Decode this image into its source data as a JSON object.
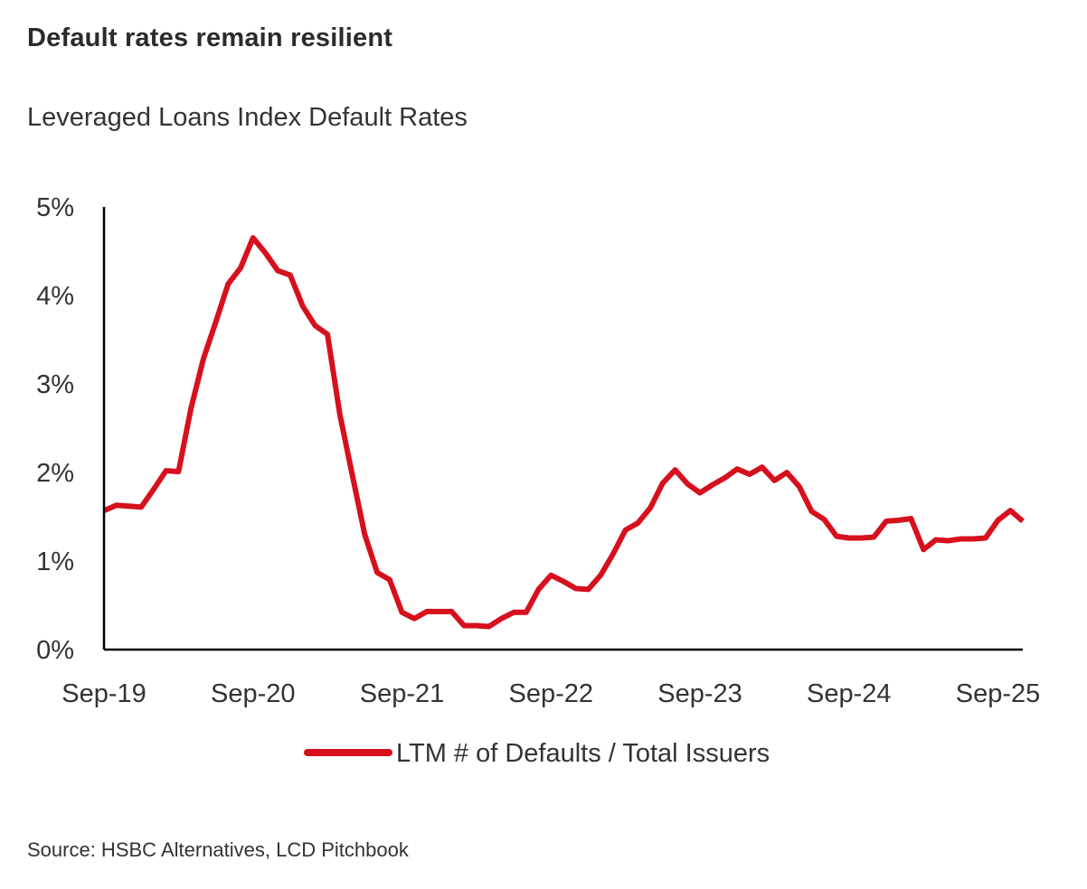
{
  "header": {
    "title": "Default rates remain resilient",
    "subtitle": "Leveraged Loans Index Default Rates"
  },
  "footer": {
    "source": "Source: HSBC Alternatives, LCD Pitchbook"
  },
  "colors": {
    "series": "#d7101d",
    "axis": "#000000",
    "text": "#333333"
  },
  "chart_data": {
    "type": "line",
    "title": "Leveraged Loans Index Default Rates",
    "xlabel": "",
    "ylabel": "",
    "ylim": [
      0,
      5
    ],
    "y_ticks": [
      0,
      1,
      2,
      3,
      4,
      5
    ],
    "y_tick_labels": [
      "0%",
      "1%",
      "2%",
      "3%",
      "4%",
      "5%"
    ],
    "x_tick_labels": [
      "Sep-19",
      "Sep-20",
      "Sep-21",
      "Sep-22",
      "Sep-23",
      "Sep-24",
      "Sep-25"
    ],
    "x_tick_months": [
      0,
      12,
      24,
      36,
      48,
      60,
      72
    ],
    "x_range_months": [
      0,
      74
    ],
    "grid": false,
    "legend_position": "bottom-center",
    "series": [
      {
        "name": "LTM # of Defaults / Total Issuers",
        "x": [
          0,
          1,
          2,
          3,
          4,
          5,
          6,
          7,
          8,
          9,
          10,
          11,
          12,
          13,
          14,
          15,
          16,
          17,
          18,
          19,
          20,
          21,
          22,
          23,
          24,
          25,
          26,
          27,
          28,
          29,
          30,
          31,
          32,
          33,
          34,
          35,
          36,
          37,
          38,
          39,
          40,
          41,
          42,
          43,
          44,
          45,
          46,
          47,
          48,
          49,
          50,
          51,
          52,
          53,
          54,
          55,
          56,
          57,
          58,
          59,
          60,
          61,
          62,
          63,
          64,
          65,
          66,
          67,
          68,
          69,
          70,
          71,
          72,
          73,
          74
        ],
        "values": [
          1.57,
          1.63,
          1.62,
          1.61,
          1.81,
          2.02,
          2.01,
          2.72,
          3.28,
          3.7,
          4.13,
          4.31,
          4.65,
          4.48,
          4.28,
          4.23,
          3.88,
          3.66,
          3.56,
          2.65,
          1.97,
          1.3,
          0.87,
          0.79,
          0.42,
          0.35,
          0.43,
          0.43,
          0.43,
          0.27,
          0.27,
          0.26,
          0.35,
          0.42,
          0.42,
          0.68,
          0.84,
          0.77,
          0.69,
          0.68,
          0.84,
          1.08,
          1.35,
          1.43,
          1.6,
          1.88,
          2.03,
          1.87,
          1.77,
          1.86,
          1.94,
          2.04,
          1.98,
          2.06,
          1.91,
          2.0,
          1.84,
          1.56,
          1.47,
          1.28,
          1.26,
          1.26,
          1.27,
          1.45,
          1.46,
          1.48,
          1.13,
          1.24,
          1.23,
          1.25,
          1.25,
          1.26,
          1.46,
          1.57,
          1.45
        ]
      }
    ]
  }
}
